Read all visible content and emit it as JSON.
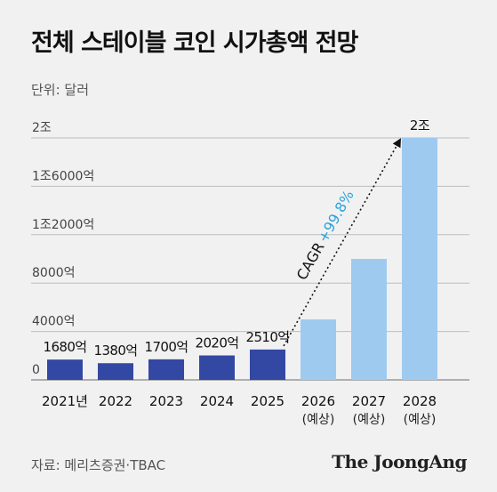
{
  "title": "전체 스테이블 코인 시가총액 전망",
  "unit_label": "단위: 달러",
  "source": "자료: 메리츠증권·TBAC",
  "brand": "The JoongAng",
  "colors": {
    "actual": "#3348a3",
    "forecast": "#9fcaef",
    "cagr": "#2aa3dd",
    "grid": "#bdbdbd",
    "text": "#111111"
  },
  "chart_data": {
    "type": "bar",
    "unit": "억 달러",
    "ylim": [
      0,
      20000
    ],
    "yticks": [
      {
        "value": 0,
        "label": "0"
      },
      {
        "value": 4000,
        "label": "4000억"
      },
      {
        "value": 8000,
        "label": "8000억"
      },
      {
        "value": 12000,
        "label": "1조2000억"
      },
      {
        "value": 16000,
        "label": "1조6000억"
      },
      {
        "value": 20000,
        "label": "2조"
      }
    ],
    "grid": true,
    "bars": [
      {
        "category": "2021년",
        "sublabel": "",
        "value": 1680,
        "label": "1680억",
        "forecast": false
      },
      {
        "category": "2022",
        "sublabel": "",
        "value": 1380,
        "label": "1380억",
        "forecast": false
      },
      {
        "category": "2023",
        "sublabel": "",
        "value": 1700,
        "label": "1700억",
        "forecast": false
      },
      {
        "category": "2024",
        "sublabel": "",
        "value": 2020,
        "label": "2020억",
        "forecast": false
      },
      {
        "category": "2025",
        "sublabel": "",
        "value": 2510,
        "label": "2510억",
        "forecast": false
      },
      {
        "category": "2026",
        "sublabel": "(예상)",
        "value": 5000,
        "label": "",
        "forecast": true
      },
      {
        "category": "2027",
        "sublabel": "(예상)",
        "value": 10000,
        "label": "",
        "forecast": true
      },
      {
        "category": "2028",
        "sublabel": "(예상)",
        "value": 20000,
        "label": "2조",
        "forecast": true
      }
    ],
    "annotation": {
      "prefix": "CAGR",
      "value": "+99.8%",
      "from": "2025",
      "to": "2028"
    }
  }
}
